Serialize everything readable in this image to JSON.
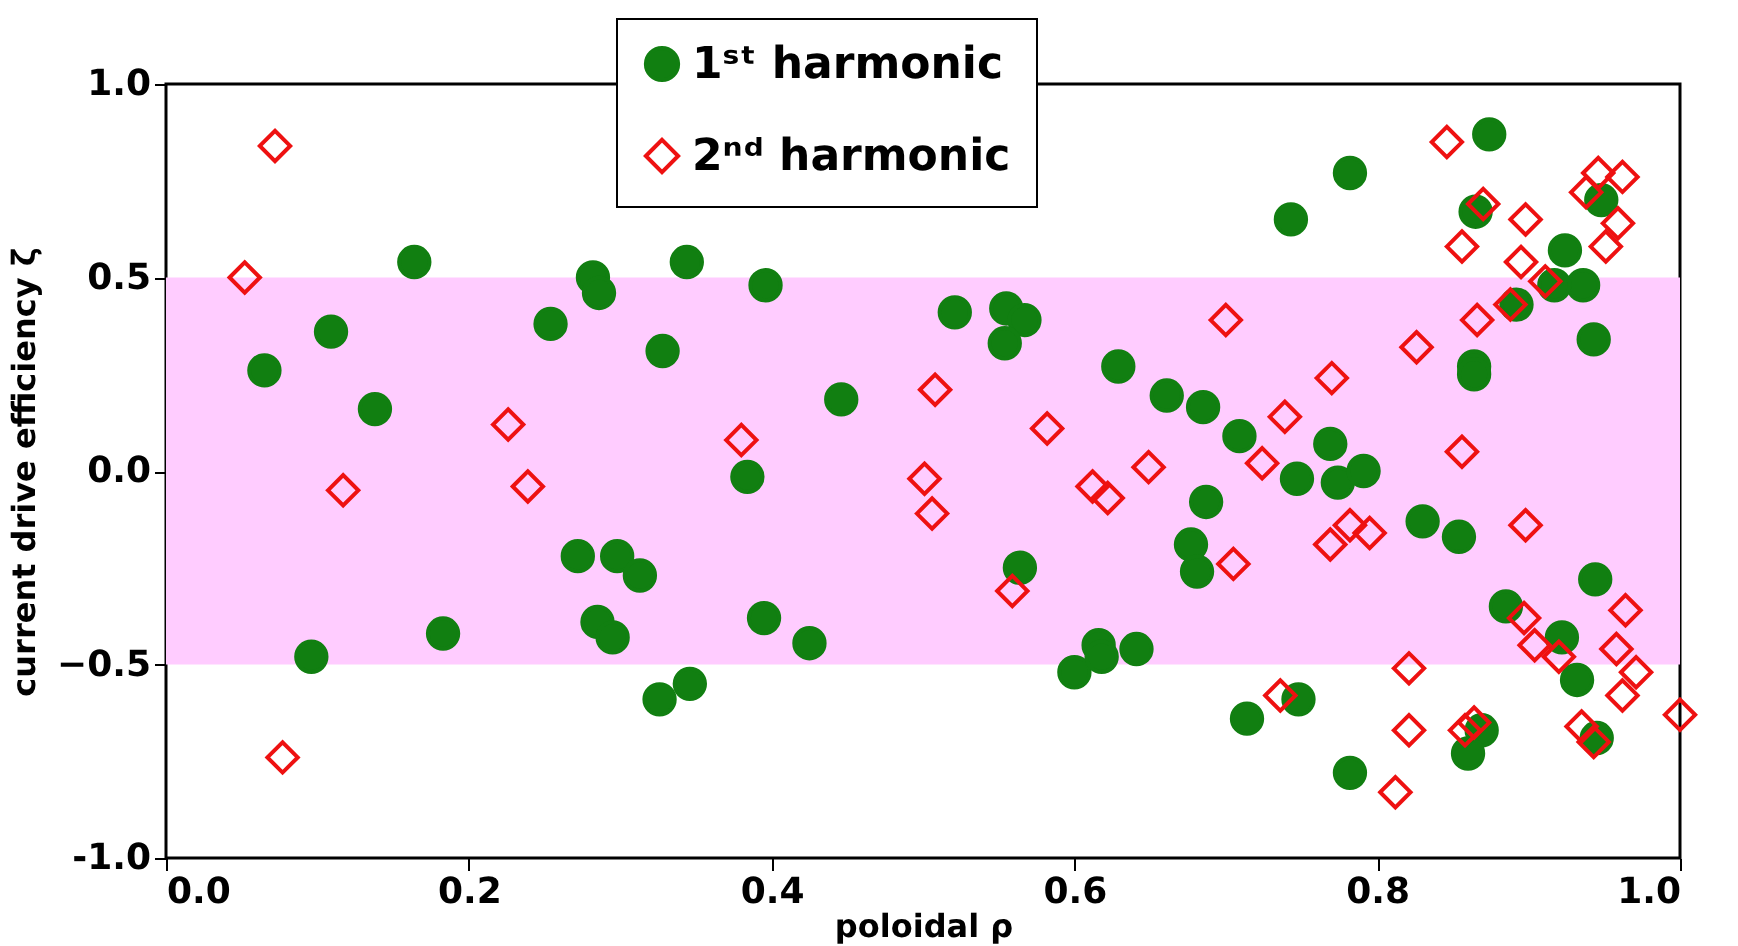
{
  "chart_data": {
    "type": "scatter",
    "xlabel": "poloidal ρ",
    "ylabel": "current drive efficiency ζ",
    "xlim": [
      0,
      1
    ],
    "ylim": [
      -1,
      1
    ],
    "xticks": [
      {
        "value": 0,
        "label": "0.0"
      },
      0.2,
      0.4,
      0.6,
      0.8,
      {
        "value": 1,
        "label": "1.0"
      }
    ],
    "yticks": [
      {
        "value": -1,
        "label": "-1.0"
      },
      -0.5,
      {
        "value": 0,
        "label": "0.0"
      },
      0.5,
      {
        "value": 1,
        "label": "1.0"
      }
    ],
    "grid": false,
    "legend": "top",
    "bands": [
      {
        "axis": "y",
        "from": -0.5,
        "to": 0.5,
        "color": "#ffccff"
      }
    ],
    "series": [
      {
        "name": "1ˢᵗ harmonic",
        "color": "#117f11",
        "marker": "circle",
        "x": [
          0.065,
          0.109,
          0.138,
          0.164,
          0.096,
          0.183,
          0.254,
          0.282,
          0.286,
          0.328,
          0.272,
          0.298,
          0.313,
          0.285,
          0.295,
          0.326,
          0.344,
          0.396,
          0.446,
          0.521,
          0.555,
          0.567,
          0.554,
          0.629,
          0.661,
          0.384,
          0.395,
          0.425,
          0.564,
          0.346,
          0.6,
          0.616,
          0.618,
          0.641,
          0.874,
          0.782,
          0.743,
          0.865,
          0.924,
          0.948,
          0.936,
          0.917,
          0.892,
          0.943,
          0.864,
          0.864,
          0.685,
          0.709,
          0.769,
          0.747,
          0.774,
          0.791,
          0.687,
          0.83,
          0.854,
          0.677,
          0.681,
          0.944,
          0.885,
          0.922,
          0.932,
          0.748,
          0.714,
          0.869,
          0.86,
          0.782,
          0.945
        ],
        "values": [
          0.26,
          0.36,
          0.16,
          0.54,
          -0.48,
          -0.42,
          0.38,
          0.5,
          0.46,
          0.31,
          -0.22,
          -0.22,
          -0.27,
          -0.39,
          -0.43,
          -0.59,
          0.54,
          0.48,
          0.185,
          0.41,
          0.42,
          0.39,
          0.33,
          0.27,
          0.195,
          -0.015,
          -0.38,
          -0.445,
          -0.25,
          -0.55,
          -0.52,
          -0.45,
          -0.48,
          -0.46,
          0.87,
          0.77,
          0.65,
          0.67,
          0.57,
          0.7,
          0.48,
          0.48,
          0.43,
          0.34,
          0.27,
          0.25,
          0.165,
          0.09,
          0.07,
          -0.02,
          -0.03,
          0,
          -0.08,
          -0.13,
          -0.17,
          -0.19,
          -0.26,
          -0.28,
          -0.35,
          -0.43,
          -0.54,
          -0.59,
          -0.64,
          -0.67,
          -0.73,
          -0.78,
          -0.69
        ]
      },
      {
        "name": "2ⁿᵈ harmonic",
        "color": "#ee1111",
        "marker": "diamond",
        "x": [
          0.072,
          0.052,
          0.117,
          0.226,
          0.239,
          0.077,
          0.38,
          0.508,
          0.501,
          0.506,
          0.582,
          0.612,
          0.622,
          0.649,
          0.559,
          0.846,
          0.87,
          0.856,
          0.898,
          0.895,
          0.911,
          0.888,
          0.946,
          0.938,
          0.962,
          0.959,
          0.951,
          0.7,
          0.866,
          0.826,
          0.77,
          0.739,
          0.724,
          0.856,
          0.769,
          0.782,
          0.795,
          0.898,
          0.705,
          0.897,
          0.904,
          0.92,
          0.964,
          0.958,
          0.971,
          0.962,
          0.821,
          0.736,
          0.821,
          0.858,
          0.864,
          0.935,
          0.943,
          0.812,
          1.0
        ],
        "values": [
          0.84,
          0.5,
          -0.05,
          0.12,
          -0.04,
          -0.74,
          0.08,
          0.21,
          -0.02,
          -0.11,
          0.11,
          -0.04,
          -0.07,
          0.01,
          -0.31,
          0.85,
          0.69,
          0.58,
          0.65,
          0.54,
          0.49,
          0.43,
          0.77,
          0.72,
          0.76,
          0.64,
          0.58,
          0.39,
          0.39,
          0.32,
          0.24,
          0.14,
          0.02,
          0.05,
          -0.19,
          -0.14,
          -0.16,
          -0.14,
          -0.24,
          -0.38,
          -0.45,
          -0.48,
          -0.36,
          -0.46,
          -0.52,
          -0.58,
          -0.51,
          -0.58,
          -0.67,
          -0.67,
          -0.65,
          -0.66,
          -0.7,
          -0.83,
          -0.63
        ]
      }
    ]
  }
}
